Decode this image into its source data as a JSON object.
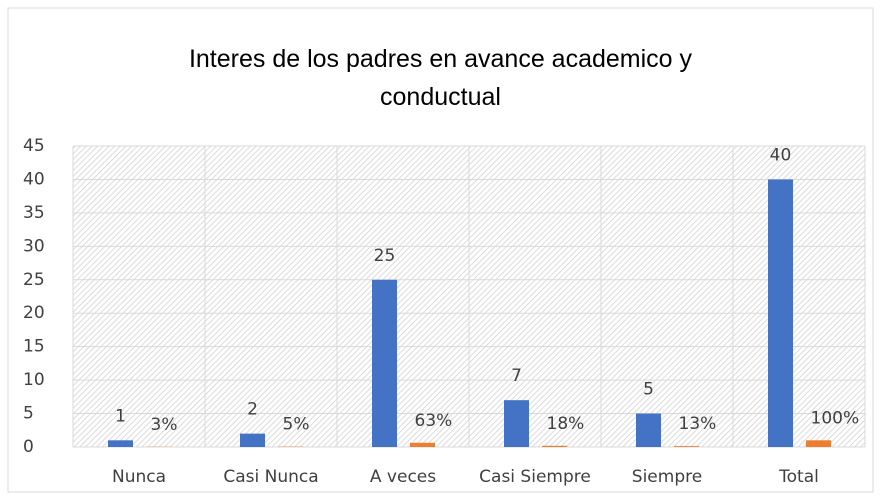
{
  "chart_data": {
    "type": "bar",
    "title": "Interes de los padres en avance academico y conductual",
    "categories": [
      "Nunca",
      "Casi Nunca",
      "A veces",
      "Casi Siempre",
      "Siempre",
      "Total"
    ],
    "series": [
      {
        "color": "#4472c4",
        "values": [
          1,
          2,
          25,
          7,
          5,
          40
        ]
      },
      {
        "color": "#ed7d31",
        "values": [
          0.03,
          0.05,
          0.63,
          0.18,
          0.13,
          1
        ],
        "value_labels": [
          "3%",
          "5%",
          "63%",
          "18%",
          "13%",
          "100%"
        ]
      }
    ],
    "ylim": [
      0,
      45
    ],
    "yticks": [
      0,
      5,
      10,
      15,
      20,
      25,
      30,
      35,
      40,
      45
    ],
    "grid": true
  }
}
